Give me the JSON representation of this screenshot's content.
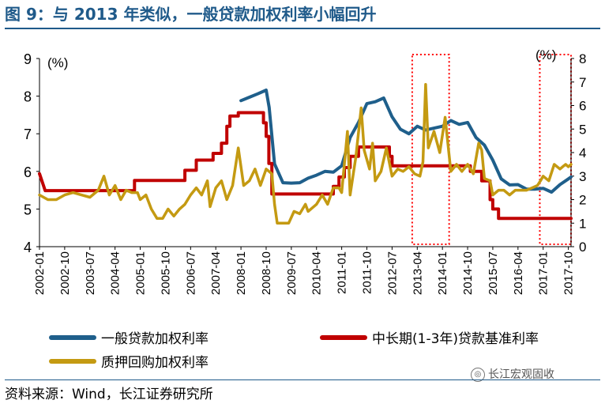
{
  "header": {
    "title": "图 9：与 2013 年类似，一般贷款加权利率小幅回升"
  },
  "footer": {
    "source": "资料来源：Wind，长江证券研究所",
    "watermark": "长江宏观固收",
    "watermark_icon": "wechat-icon"
  },
  "colors": {
    "general": "#1f5f8b",
    "benchmark": "#c00000",
    "repo": "#c49a12",
    "title": "#1f5a8a",
    "highlight": "#ff0000"
  },
  "chart_data": {
    "type": "line",
    "title": "",
    "x_tick_labels": [
      "2002-01",
      "2002-10",
      "2003-07",
      "2004-04",
      "2005-01",
      "2005-10",
      "2006-07",
      "2007-04",
      "2008-01",
      "2008-10",
      "2009-07",
      "2010-04",
      "2011-01",
      "2011-10",
      "2012-07",
      "2013-04",
      "2014-01",
      "2014-10",
      "2015-07",
      "2016-04",
      "2017-01",
      "2017-10"
    ],
    "x_range": [
      2002.0,
      2017.83
    ],
    "ylabel_left": "(%)",
    "ylabel_right": "(%)",
    "ylim_left": [
      4,
      9
    ],
    "ylim_right": [
      0,
      8
    ],
    "y_ticks_left": [
      "4",
      "5",
      "6",
      "7",
      "8",
      "9"
    ],
    "y_ticks_right": [
      "0",
      "1",
      "2",
      "3",
      "4",
      "5",
      "6",
      "7",
      "8"
    ],
    "highlight_periods": [
      [
        2013.1,
        2014.2
      ],
      [
        2016.9,
        2017.83
      ]
    ],
    "series": [
      {
        "key": "general",
        "name": "一般贷款加权利率",
        "axis": "left",
        "points": [
          [
            2008.0,
            7.88
          ],
          [
            2008.25,
            7.97
          ],
          [
            2008.5,
            8.06
          ],
          [
            2008.75,
            8.16
          ],
          [
            2008.84,
            7.7
          ],
          [
            2009.0,
            6.2
          ],
          [
            2009.25,
            5.7
          ],
          [
            2009.5,
            5.69
          ],
          [
            2009.75,
            5.7
          ],
          [
            2010.0,
            5.82
          ],
          [
            2010.25,
            5.9
          ],
          [
            2010.5,
            6.0
          ],
          [
            2010.75,
            5.98
          ],
          [
            2011.0,
            6.15
          ],
          [
            2011.25,
            6.9
          ],
          [
            2011.5,
            7.3
          ],
          [
            2011.75,
            7.8
          ],
          [
            2012.0,
            7.85
          ],
          [
            2012.25,
            7.95
          ],
          [
            2012.5,
            7.45
          ],
          [
            2012.75,
            7.12
          ],
          [
            2013.0,
            7.0
          ],
          [
            2013.25,
            7.2
          ],
          [
            2013.5,
            7.1
          ],
          [
            2013.75,
            7.15
          ],
          [
            2014.0,
            7.2
          ],
          [
            2014.25,
            7.35
          ],
          [
            2014.5,
            7.25
          ],
          [
            2014.75,
            7.3
          ],
          [
            2015.0,
            6.9
          ],
          [
            2015.25,
            6.7
          ],
          [
            2015.5,
            6.3
          ],
          [
            2015.75,
            5.8
          ],
          [
            2016.0,
            5.64
          ],
          [
            2016.25,
            5.65
          ],
          [
            2016.5,
            5.53
          ],
          [
            2016.75,
            5.53
          ],
          [
            2017.0,
            5.55
          ],
          [
            2017.25,
            5.45
          ],
          [
            2017.5,
            5.65
          ],
          [
            2017.75,
            5.8
          ],
          [
            2017.83,
            5.85
          ]
        ]
      },
      {
        "key": "benchmark",
        "name": "中长期(1-3年)贷款基准利率",
        "axis": "left",
        "points": [
          [
            2002.0,
            5.94
          ],
          [
            2002.17,
            5.49
          ],
          [
            2004.83,
            5.49
          ],
          [
            2004.83,
            5.76
          ],
          [
            2006.33,
            5.76
          ],
          [
            2006.33,
            6.03
          ],
          [
            2006.67,
            6.03
          ],
          [
            2006.67,
            6.3
          ],
          [
            2007.17,
            6.3
          ],
          [
            2007.17,
            6.48
          ],
          [
            2007.42,
            6.48
          ],
          [
            2007.42,
            6.75
          ],
          [
            2007.58,
            6.75
          ],
          [
            2007.58,
            7.2
          ],
          [
            2007.67,
            7.2
          ],
          [
            2007.67,
            7.47
          ],
          [
            2007.92,
            7.47
          ],
          [
            2007.92,
            7.56
          ],
          [
            2008.67,
            7.56
          ],
          [
            2008.67,
            7.29
          ],
          [
            2008.75,
            7.29
          ],
          [
            2008.75,
            6.93
          ],
          [
            2008.83,
            6.93
          ],
          [
            2008.83,
            6.21
          ],
          [
            2008.92,
            6.21
          ],
          [
            2008.92,
            5.4
          ],
          [
            2010.75,
            5.4
          ],
          [
            2010.75,
            5.6
          ],
          [
            2010.92,
            5.6
          ],
          [
            2010.92,
            5.85
          ],
          [
            2011.08,
            5.85
          ],
          [
            2011.08,
            6.1
          ],
          [
            2011.25,
            6.1
          ],
          [
            2011.25,
            6.4
          ],
          [
            2011.5,
            6.4
          ],
          [
            2011.5,
            6.65
          ],
          [
            2012.42,
            6.65
          ],
          [
            2012.42,
            6.4
          ],
          [
            2012.5,
            6.4
          ],
          [
            2012.5,
            6.15
          ],
          [
            2014.83,
            6.15
          ],
          [
            2014.83,
            6.0
          ],
          [
            2015.17,
            6.0
          ],
          [
            2015.17,
            5.75
          ],
          [
            2015.42,
            5.75
          ],
          [
            2015.42,
            5.25
          ],
          [
            2015.5,
            5.25
          ],
          [
            2015.5,
            5.0
          ],
          [
            2015.67,
            5.0
          ],
          [
            2015.67,
            4.75
          ],
          [
            2017.83,
            4.75
          ]
        ]
      },
      {
        "key": "repo",
        "name": "质押回购加权利率",
        "axis": "right",
        "points": [
          [
            2002.0,
            2.2
          ],
          [
            2002.25,
            2.0
          ],
          [
            2002.5,
            2.0
          ],
          [
            2002.75,
            2.2
          ],
          [
            2003.0,
            2.3
          ],
          [
            2003.25,
            2.2
          ],
          [
            2003.5,
            2.1
          ],
          [
            2003.75,
            2.4
          ],
          [
            2003.92,
            3.0
          ],
          [
            2004.08,
            2.2
          ],
          [
            2004.25,
            2.6
          ],
          [
            2004.42,
            2.0
          ],
          [
            2004.58,
            2.4
          ],
          [
            2004.75,
            2.3
          ],
          [
            2004.92,
            2.3
          ],
          [
            2005.0,
            2.0
          ],
          [
            2005.17,
            2.2
          ],
          [
            2005.33,
            1.6
          ],
          [
            2005.5,
            1.2
          ],
          [
            2005.67,
            1.2
          ],
          [
            2005.83,
            1.6
          ],
          [
            2006.0,
            1.3
          ],
          [
            2006.17,
            1.6
          ],
          [
            2006.33,
            1.8
          ],
          [
            2006.5,
            2.2
          ],
          [
            2006.67,
            2.5
          ],
          [
            2006.83,
            2.2
          ],
          [
            2007.0,
            2.8
          ],
          [
            2007.08,
            1.7
          ],
          [
            2007.25,
            2.5
          ],
          [
            2007.42,
            2.8
          ],
          [
            2007.58,
            2.0
          ],
          [
            2007.75,
            2.6
          ],
          [
            2007.92,
            4.2
          ],
          [
            2008.08,
            2.6
          ],
          [
            2008.25,
            2.8
          ],
          [
            2008.42,
            3.3
          ],
          [
            2008.58,
            2.6
          ],
          [
            2008.75,
            3.3
          ],
          [
            2008.92,
            3.1
          ],
          [
            2009.0,
            1.8
          ],
          [
            2009.08,
            1.0
          ],
          [
            2009.25,
            1.0
          ],
          [
            2009.42,
            1.0
          ],
          [
            2009.58,
            1.5
          ],
          [
            2009.75,
            1.4
          ],
          [
            2009.92,
            1.8
          ],
          [
            2010.0,
            1.5
          ],
          [
            2010.25,
            1.8
          ],
          [
            2010.42,
            2.2
          ],
          [
            2010.58,
            1.8
          ],
          [
            2010.75,
            2.5
          ],
          [
            2010.92,
            2.5
          ],
          [
            2011.0,
            2.3
          ],
          [
            2011.17,
            4.9
          ],
          [
            2011.25,
            2.2
          ],
          [
            2011.42,
            3.8
          ],
          [
            2011.58,
            5.9
          ],
          [
            2011.67,
            4.1
          ],
          [
            2011.83,
            3.3
          ],
          [
            2011.92,
            4.4
          ],
          [
            2012.0,
            2.8
          ],
          [
            2012.17,
            3.2
          ],
          [
            2012.33,
            4.2
          ],
          [
            2012.5,
            3.0
          ],
          [
            2012.67,
            3.3
          ],
          [
            2012.83,
            3.2
          ],
          [
            2013.0,
            3.4
          ],
          [
            2013.17,
            3.1
          ],
          [
            2013.33,
            3.0
          ],
          [
            2013.42,
            3.6
          ],
          [
            2013.5,
            6.9
          ],
          [
            2013.58,
            4.2
          ],
          [
            2013.75,
            4.9
          ],
          [
            2013.92,
            4.0
          ],
          [
            2014.08,
            5.5
          ],
          [
            2014.25,
            3.2
          ],
          [
            2014.42,
            3.5
          ],
          [
            2014.58,
            3.2
          ],
          [
            2014.75,
            3.5
          ],
          [
            2014.92,
            3.1
          ],
          [
            2015.08,
            4.4
          ],
          [
            2015.17,
            4.1
          ],
          [
            2015.25,
            2.9
          ],
          [
            2015.42,
            2.8
          ],
          [
            2015.5,
            2.2
          ],
          [
            2015.67,
            2.4
          ],
          [
            2015.83,
            2.4
          ],
          [
            2016.0,
            2.2
          ],
          [
            2016.17,
            2.4
          ],
          [
            2016.33,
            2.4
          ],
          [
            2016.5,
            2.4
          ],
          [
            2016.67,
            2.5
          ],
          [
            2016.83,
            2.6
          ],
          [
            2016.92,
            2.8
          ],
          [
            2017.0,
            3.0
          ],
          [
            2017.17,
            2.8
          ],
          [
            2017.33,
            3.5
          ],
          [
            2017.5,
            3.3
          ],
          [
            2017.58,
            3.4
          ],
          [
            2017.67,
            3.5
          ],
          [
            2017.75,
            3.4
          ],
          [
            2017.83,
            3.5
          ]
        ]
      }
    ]
  }
}
